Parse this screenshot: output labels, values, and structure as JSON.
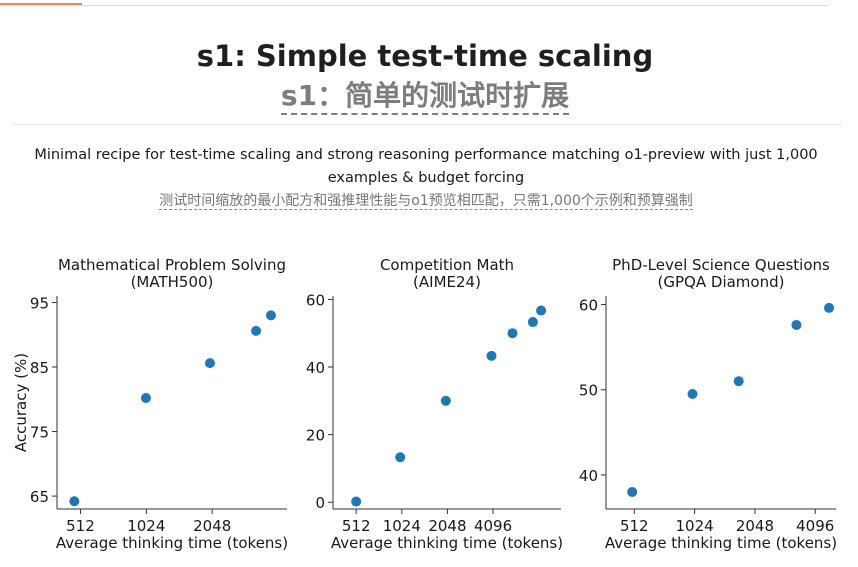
{
  "page": {
    "title_en": "s1: Simple test-time scaling",
    "title_zh": "s1：简单的测试时扩展",
    "description_en": "Minimal recipe for test-time scaling and strong reasoning performance matching o1-preview with just 1,000 examples & budget forcing",
    "description_zh": "测试时间缩放的最小配方和强推理性能与o1预览相匹配，只需1,000个示例和预算强制"
  },
  "colors": {
    "marker": "#1f77b4",
    "axis": "#333333"
  },
  "chart_data": [
    {
      "type": "scatter",
      "title": "Mathematical Problem Solving",
      "subtitle": "(MATH500)",
      "xlabel": "Average thinking time (tokens)",
      "ylabel": "Accuracy (%)",
      "x_scale": "log2",
      "xlim": [
        400,
        4500
      ],
      "ylim": [
        63,
        96
      ],
      "xticks": [
        512,
        1024,
        2048
      ],
      "yticks": [
        65,
        75,
        85,
        95
      ],
      "grid": false,
      "points": [
        {
          "x": 480,
          "y": 64.2
        },
        {
          "x": 1020,
          "y": 80.2
        },
        {
          "x": 2000,
          "y": 85.6
        },
        {
          "x": 3250,
          "y": 90.6
        },
        {
          "x": 3800,
          "y": 93.0
        }
      ]
    },
    {
      "type": "scatter",
      "title": "Competition Math",
      "subtitle": "(AIME24)",
      "xlabel": "Average thinking time (tokens)",
      "ylabel": "",
      "x_scale": "log2",
      "xlim": [
        360,
        11500
      ],
      "ylim": [
        -2,
        61
      ],
      "xticks": [
        512,
        1024,
        2048,
        4096
      ],
      "yticks": [
        0,
        20,
        40,
        60
      ],
      "grid": false,
      "points": [
        {
          "x": 512,
          "y": 0.2
        },
        {
          "x": 1000,
          "y": 13.3
        },
        {
          "x": 2000,
          "y": 30.0
        },
        {
          "x": 4000,
          "y": 43.3
        },
        {
          "x": 5500,
          "y": 50.0
        },
        {
          "x": 7500,
          "y": 53.3
        },
        {
          "x": 8500,
          "y": 56.7
        }
      ]
    },
    {
      "type": "scatter",
      "title": "PhD-Level Science Questions",
      "subtitle": "(GPQA Diamond)",
      "xlabel": "Average thinking time (tokens)",
      "ylabel": "",
      "x_scale": "log2",
      "xlim": [
        370,
        5200
      ],
      "ylim": [
        36,
        61
      ],
      "xticks": [
        512,
        1024,
        2048,
        4096
      ],
      "yticks": [
        40,
        50,
        60
      ],
      "grid": false,
      "points": [
        {
          "x": 500,
          "y": 38.0
        },
        {
          "x": 1000,
          "y": 49.5
        },
        {
          "x": 1700,
          "y": 51.0
        },
        {
          "x": 3300,
          "y": 57.6
        },
        {
          "x": 4800,
          "y": 59.6
        }
      ]
    }
  ]
}
